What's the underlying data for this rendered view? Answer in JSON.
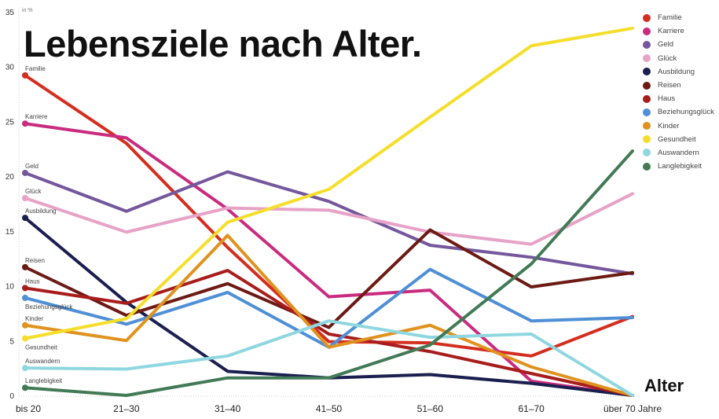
{
  "chart_data": {
    "type": "line",
    "title": "Lebensziele nach Alter.",
    "ylabel": "in %",
    "xlabel": "Alter",
    "categories": [
      "bis 20",
      "21–30",
      "31–40",
      "41–50",
      "51–60",
      "61–70",
      "über 70 Jahre"
    ],
    "ylim": [
      0,
      35
    ],
    "yticks": [
      0,
      5,
      10,
      15,
      20,
      25,
      30,
      35
    ],
    "grid": false,
    "legend": "right",
    "series": [
      {
        "name": "Familie",
        "color": "#d42e1f",
        "values": [
          29.2,
          23.0,
          13.5,
          4.9,
          4.8,
          3.6,
          7.2
        ]
      },
      {
        "name": "Karriere",
        "color": "#c92c7f",
        "values": [
          24.8,
          23.5,
          17.0,
          9.0,
          9.6,
          1.3,
          0
        ]
      },
      {
        "name": "Geld",
        "color": "#74579c",
        "values": [
          20.3,
          16.8,
          20.4,
          17.7,
          13.7,
          12.6,
          11.1
        ]
      },
      {
        "name": "Glück",
        "color": "#e7a2c7",
        "values": [
          18.0,
          14.9,
          17.1,
          16.9,
          14.9,
          13.8,
          18.4
        ]
      },
      {
        "name": "Ausbildung",
        "color": "#1b1f4f",
        "values": [
          16.2,
          8.5,
          2.2,
          1.6,
          1.9,
          1.1,
          0
        ]
      },
      {
        "name": "Reisen",
        "color": "#6c1a14",
        "values": [
          11.7,
          7.3,
          10.2,
          6.2,
          15.1,
          9.9,
          11.2
        ]
      },
      {
        "name": "Haus",
        "color": "#a81d1c",
        "values": [
          9.8,
          8.4,
          11.4,
          5.6,
          4.0,
          2.0,
          0
        ]
      },
      {
        "name": "Beziehungsglück",
        "color": "#4f8fd6",
        "values": [
          8.9,
          6.5,
          9.4,
          4.4,
          11.5,
          6.8,
          7.1
        ]
      },
      {
        "name": "Kinder",
        "color": "#e0921f",
        "values": [
          6.4,
          5.0,
          14.6,
          4.4,
          6.4,
          2.6,
          0
        ]
      },
      {
        "name": "Gesundheit",
        "color": "#f5de2b",
        "values": [
          5.2,
          7.0,
          15.8,
          18.8,
          25.4,
          31.9,
          33.5
        ]
      },
      {
        "name": "Auswandern",
        "color": "#8fd7e0",
        "values": [
          2.5,
          2.4,
          3.6,
          6.8,
          5.3,
          5.6,
          0
        ]
      },
      {
        "name": "Langlebigkeit",
        "color": "#437a56",
        "values": [
          0.7,
          0.0,
          1.6,
          1.6,
          4.6,
          12.0,
          22.3
        ]
      }
    ]
  }
}
